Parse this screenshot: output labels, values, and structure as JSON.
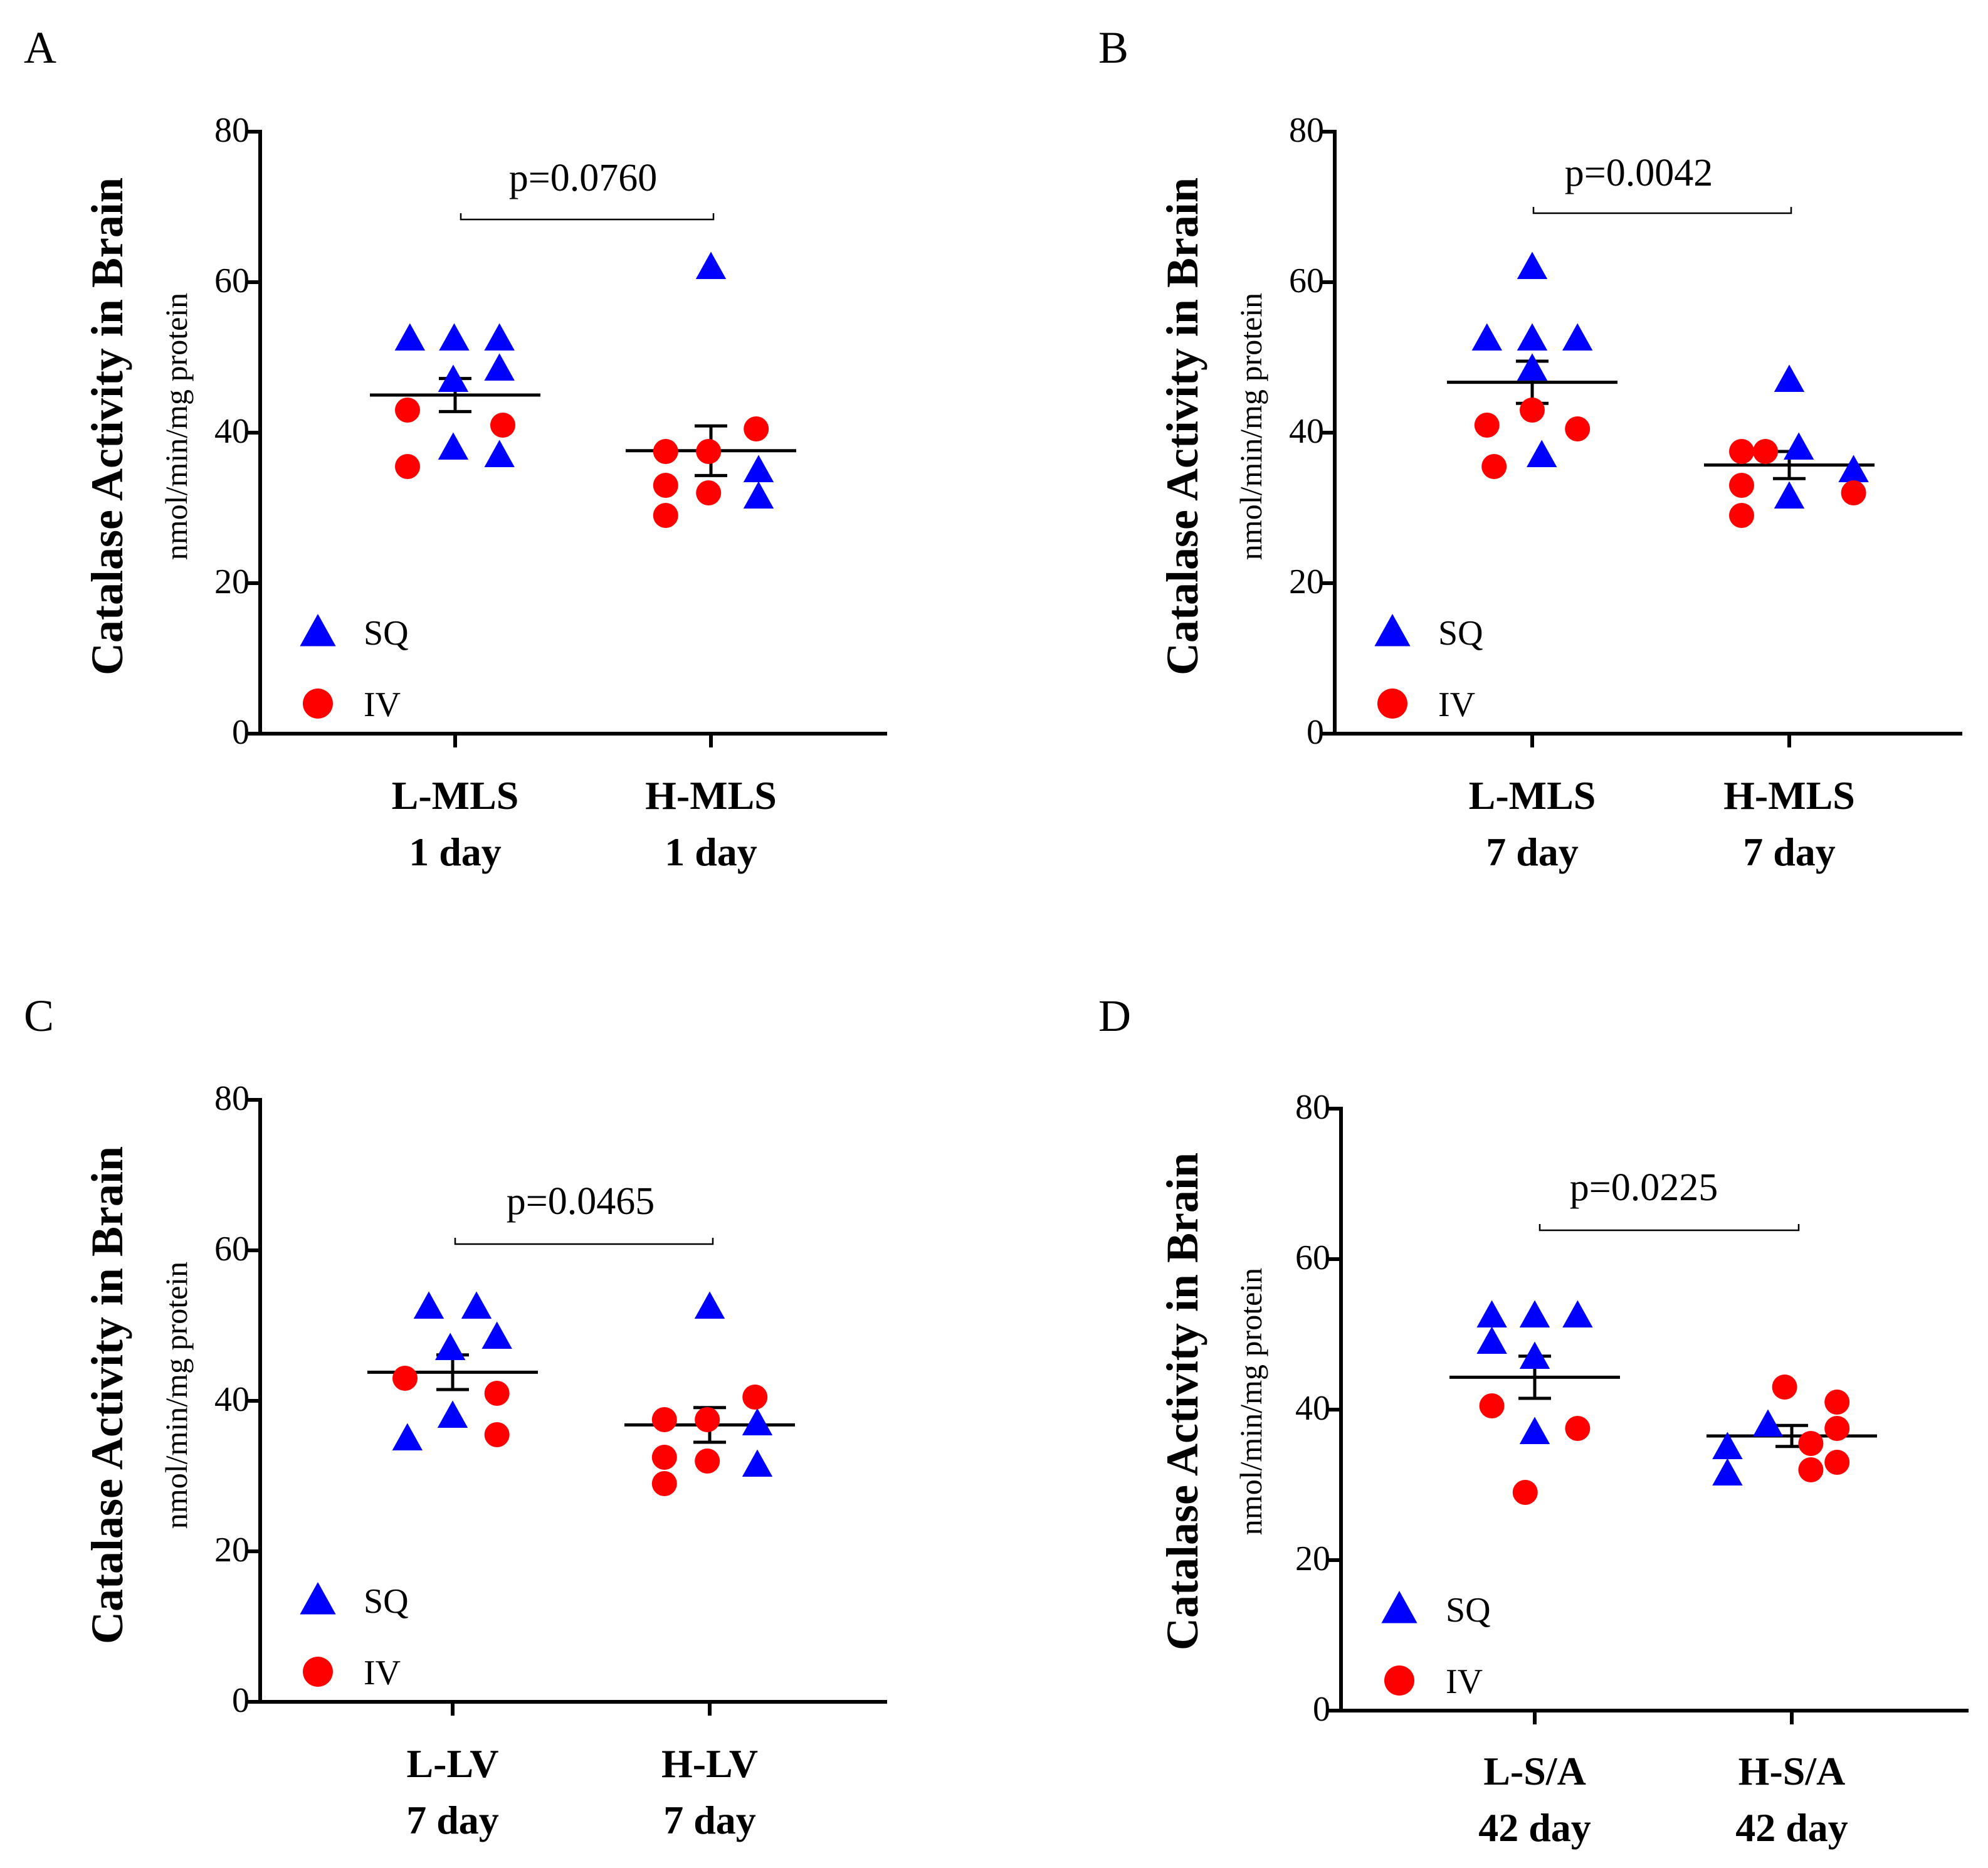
{
  "legend": {
    "sq_label": "SQ",
    "iv_label": "IV"
  },
  "colors": {
    "sq": "#0000ff",
    "iv": "#ff0000",
    "axis": "#000000"
  },
  "chart_data": [
    {
      "panel": "A",
      "type": "scatter",
      "ylabel": "Catalase Activity in Brain",
      "yunit": "nmol/min/mg protein",
      "ylim": [
        0,
        80
      ],
      "yticks": [
        "0",
        "20",
        "40",
        "60",
        "80"
      ],
      "categories": [
        {
          "line1": "L-MLS",
          "line2": "1 day"
        },
        {
          "line1": "H-MLS",
          "line2": "1 day"
        }
      ],
      "pvalue": "p=0.0760",
      "groups": [
        {
          "mean": 45.0,
          "sem": 2.2,
          "sq": [
            [
              -0.95,
              52.5
            ],
            [
              -0.02,
              52.5
            ],
            [
              0.93,
              52.5
            ],
            [
              -0.04,
              47
            ],
            [
              0.93,
              48.5
            ],
            [
              -0.04,
              38
            ],
            [
              0.93,
              37
            ]
          ],
          "iv": [
            [
              -1.0,
              43
            ],
            [
              1.0,
              41
            ],
            [
              -1.0,
              35.5
            ]
          ]
        },
        {
          "mean": 37.6,
          "sem": 3.3,
          "sq": [
            [
              0.0,
              62
            ],
            [
              1.0,
              35
            ],
            [
              1.0,
              31.5
            ]
          ],
          "iv": [
            [
              -0.95,
              37.5
            ],
            [
              -0.05,
              37.5
            ],
            [
              0.95,
              40.5
            ],
            [
              -0.95,
              33
            ],
            [
              -0.05,
              32
            ],
            [
              -0.95,
              29
            ]
          ]
        }
      ]
    },
    {
      "panel": "B",
      "type": "scatter",
      "ylabel": "Catalase Activity in Brain",
      "yunit": "nmol/min/mg protein",
      "ylim": [
        0,
        80
      ],
      "yticks": [
        "0",
        "20",
        "40",
        "60",
        "80"
      ],
      "categories": [
        {
          "line1": "L-MLS",
          "line2": "7 day"
        },
        {
          "line1": "H-MLS",
          "line2": "7 day"
        }
      ],
      "pvalue": "p=0.0042",
      "groups": [
        {
          "mean": 46.7,
          "sem": 2.8,
          "sq": [
            [
              0.0,
              62
            ],
            [
              -0.95,
              52.5
            ],
            [
              0.0,
              52.5
            ],
            [
              0.95,
              52.5
            ],
            [
              0.0,
              48.5
            ],
            [
              0.2,
              37
            ]
          ],
          "iv": [
            [
              -0.95,
              41
            ],
            [
              0.0,
              43
            ],
            [
              0.95,
              40.5
            ],
            [
              -0.8,
              35.5
            ]
          ]
        },
        {
          "mean": 35.7,
          "sem": 1.8,
          "sq": [
            [
              0.0,
              47
            ],
            [
              0.2,
              38
            ],
            [
              0.0,
              31.5
            ],
            [
              1.35,
              35
            ]
          ],
          "iv": [
            [
              -1.0,
              37.5
            ],
            [
              -0.5,
              37.5
            ],
            [
              -1.0,
              33
            ],
            [
              -1.0,
              29
            ],
            [
              1.35,
              32
            ]
          ]
        }
      ]
    },
    {
      "panel": "C",
      "type": "scatter",
      "ylabel": "Catalase Activity in Brain",
      "yunit": "nmol/min/mg protein",
      "ylim": [
        0,
        80
      ],
      "yticks": [
        "0",
        "20",
        "40",
        "60",
        "80"
      ],
      "categories": [
        {
          "line1": "L-LV",
          "line2": "7 day"
        },
        {
          "line1": "H-LV",
          "line2": "7 day"
        }
      ],
      "pvalue": "p=0.0465",
      "groups": [
        {
          "mean": 43.8,
          "sem": 2.3,
          "sq": [
            [
              -0.5,
              52.5
            ],
            [
              0.5,
              52.5
            ],
            [
              -0.05,
              47
            ],
            [
              0.93,
              48.5
            ],
            [
              0.0,
              38
            ],
            [
              -0.95,
              35
            ]
          ],
          "iv": [
            [
              -1.0,
              43
            ],
            [
              0.93,
              41
            ],
            [
              0.93,
              35.5
            ]
          ]
        },
        {
          "mean": 36.8,
          "sem": 2.3,
          "sq": [
            [
              0.0,
              52.5
            ],
            [
              1.0,
              37
            ],
            [
              1.0,
              31.5
            ]
          ],
          "iv": [
            [
              -0.95,
              37.5
            ],
            [
              -0.05,
              37.5
            ],
            [
              0.95,
              40.5
            ],
            [
              -0.95,
              32.5
            ],
            [
              -0.05,
              32
            ],
            [
              -0.95,
              29
            ]
          ]
        }
      ]
    },
    {
      "panel": "D",
      "type": "scatter",
      "ylabel": "Catalase Activity in Brain",
      "yunit": "nmol/min/mg protein",
      "ylim": [
        0,
        80
      ],
      "yticks": [
        "0",
        "20",
        "40",
        "60",
        "80"
      ],
      "categories": [
        {
          "line1": "L-S/A",
          "line2": "42 day"
        },
        {
          "line1": "H-S/A",
          "line2": "42 day"
        }
      ],
      "pvalue": "p=0.0225",
      "groups": [
        {
          "mean": 44.3,
          "sem": 2.8,
          "sq": [
            [
              -0.9,
              52.5
            ],
            [
              0.0,
              52.5
            ],
            [
              0.9,
              52.5
            ],
            [
              -0.9,
              49
            ],
            [
              0.0,
              47
            ],
            [
              0.0,
              37
            ]
          ],
          "iv": [
            [
              -0.9,
              40.5
            ],
            [
              0.9,
              37.5
            ],
            [
              -0.2,
              29
            ]
          ]
        },
        {
          "mean": 36.5,
          "sem": 1.4,
          "sq": [
            [
              -0.5,
              38
            ],
            [
              -1.35,
              35
            ],
            [
              -1.35,
              31.5
            ]
          ],
          "iv": [
            [
              -0.15,
              43
            ],
            [
              0.95,
              41
            ],
            [
              0.95,
              37.5
            ],
            [
              0.4,
              35.5
            ],
            [
              0.4,
              32
            ],
            [
              0.95,
              33
            ]
          ]
        }
      ]
    }
  ]
}
